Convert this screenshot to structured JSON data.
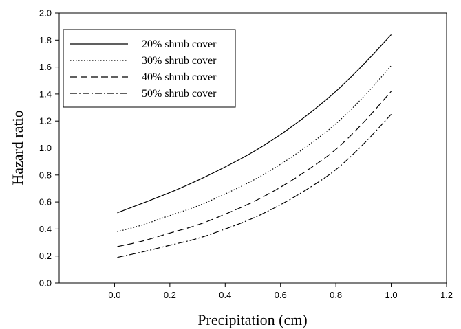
{
  "chart_data": {
    "type": "line",
    "xlabel": "Precipitation (cm)",
    "ylabel": "Hazard ratio",
    "xlim": [
      -0.2,
      1.2
    ],
    "ylim": [
      0.0,
      2.0
    ],
    "xticks": [
      0.0,
      0.2,
      0.4,
      0.6,
      0.8,
      1.0,
      1.2
    ],
    "xtick_labels": [
      "0.0",
      "0.2",
      "0.4",
      "0.6",
      "0.8",
      "1.0",
      "1.2"
    ],
    "yticks": [
      0.0,
      0.2,
      0.4,
      0.6,
      0.8,
      1.0,
      1.2,
      1.4,
      1.6,
      1.8,
      2.0
    ],
    "ytick_labels": [
      "0.0",
      "0.2",
      "0.4",
      "0.6",
      "0.8",
      "1.0",
      "1.2",
      "1.4",
      "1.6",
      "1.8",
      "2.0"
    ],
    "grid": false,
    "legend_position": "top-left",
    "series": [
      {
        "name": "20% shrub cover",
        "line_style": "solid",
        "x": [
          0.01,
          0.1,
          0.2,
          0.3,
          0.4,
          0.5,
          0.6,
          0.7,
          0.8,
          0.9,
          1.0
        ],
        "values": [
          0.52,
          0.59,
          0.67,
          0.76,
          0.86,
          0.97,
          1.1,
          1.25,
          1.42,
          1.62,
          1.84
        ]
      },
      {
        "name": "30% shrub cover",
        "line_style": "dotted",
        "x": [
          0.01,
          0.1,
          0.2,
          0.3,
          0.4,
          0.5,
          0.6,
          0.7,
          0.8,
          0.9,
          1.0
        ],
        "values": [
          0.38,
          0.43,
          0.5,
          0.57,
          0.66,
          0.76,
          0.88,
          1.02,
          1.18,
          1.38,
          1.61
        ]
      },
      {
        "name": "40% shrub cover",
        "line_style": "dashed",
        "x": [
          0.01,
          0.1,
          0.2,
          0.3,
          0.4,
          0.5,
          0.6,
          0.7,
          0.8,
          0.9,
          1.0
        ],
        "values": [
          0.27,
          0.31,
          0.37,
          0.43,
          0.51,
          0.6,
          0.71,
          0.84,
          0.99,
          1.19,
          1.42
        ]
      },
      {
        "name": "50% shrub cover",
        "line_style": "dashdot",
        "x": [
          0.01,
          0.1,
          0.2,
          0.3,
          0.4,
          0.5,
          0.6,
          0.7,
          0.8,
          0.9,
          1.0
        ],
        "values": [
          0.19,
          0.23,
          0.28,
          0.33,
          0.4,
          0.48,
          0.58,
          0.7,
          0.84,
          1.03,
          1.25
        ]
      }
    ]
  }
}
